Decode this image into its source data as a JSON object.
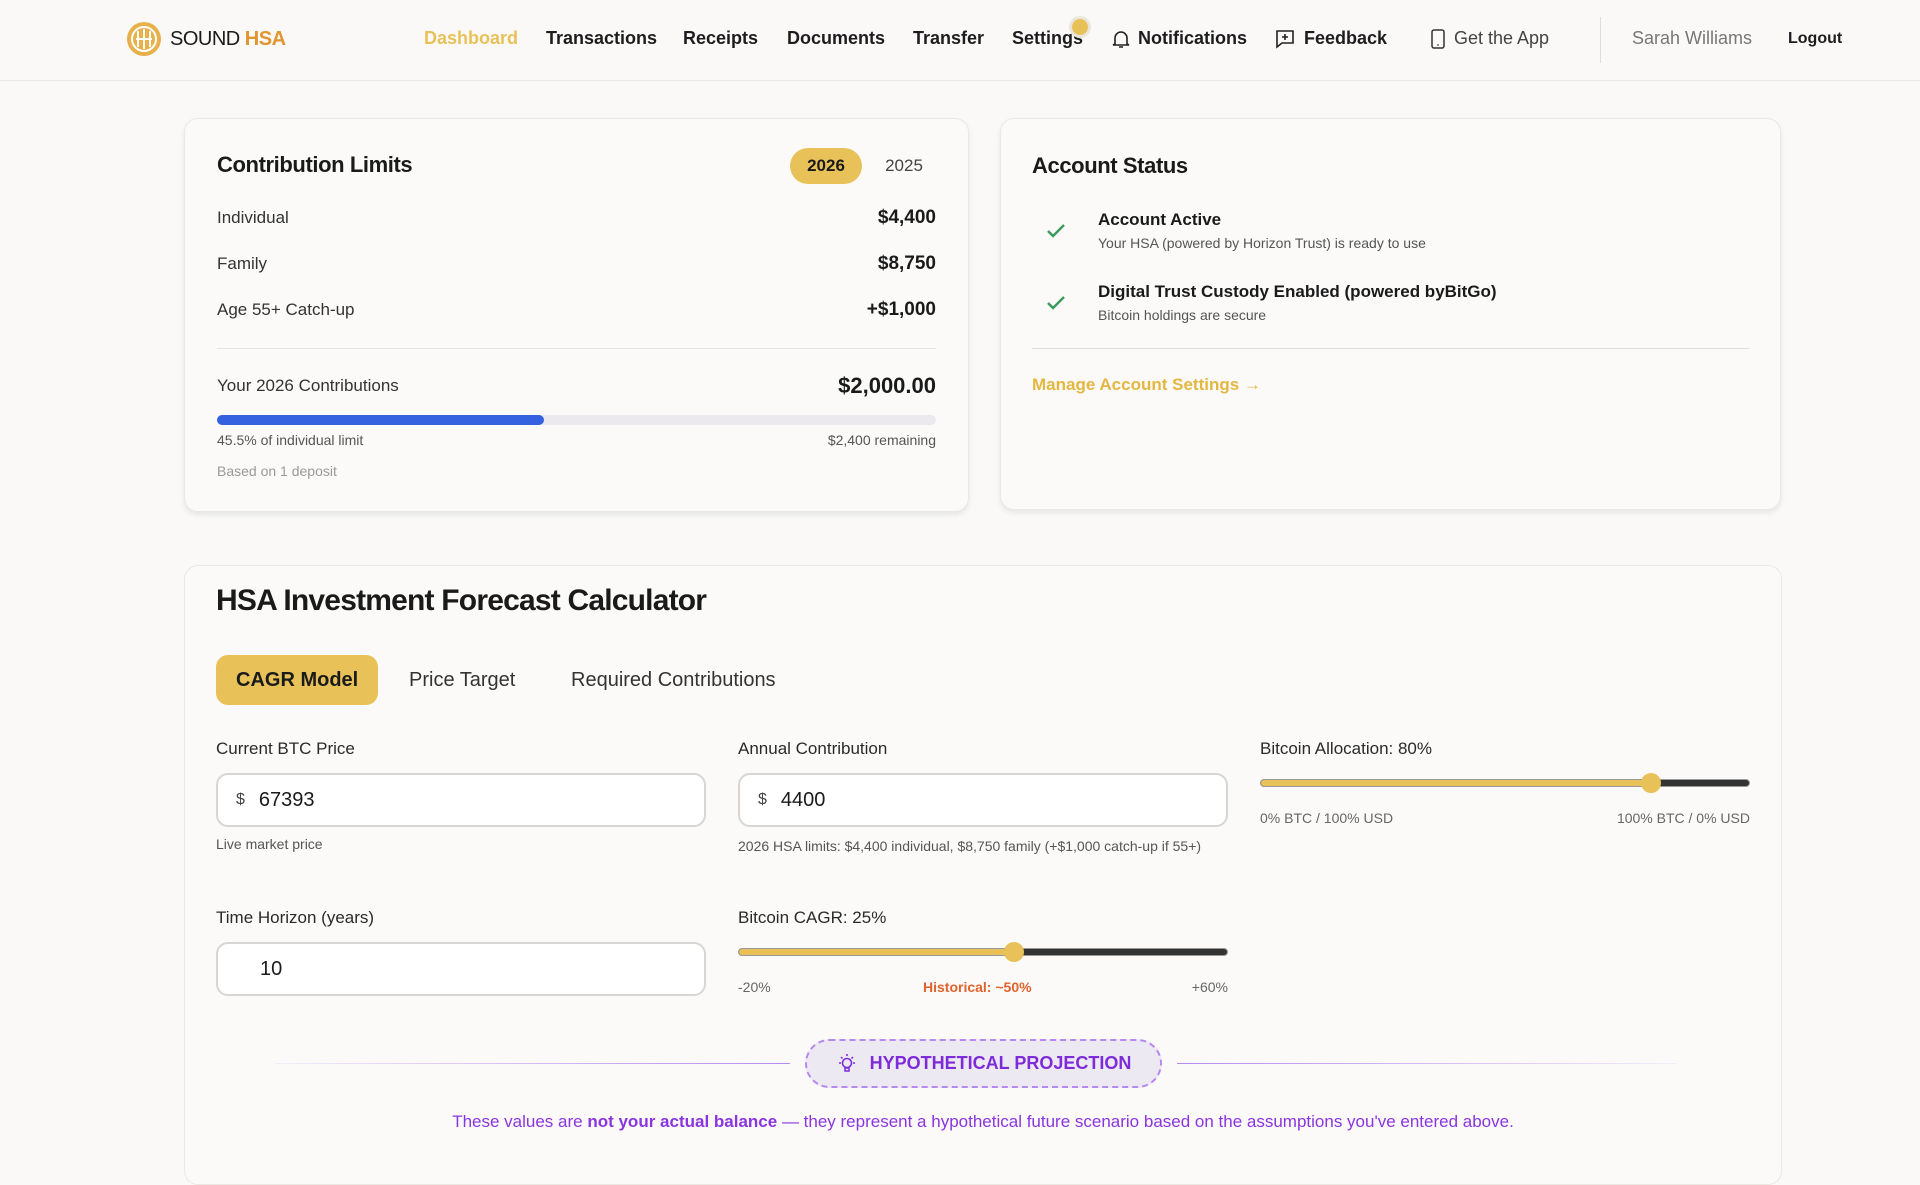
{
  "header": {
    "brand_a": "SOUND",
    "brand_b": "HSA",
    "nav": [
      "Dashboard",
      "Transactions",
      "Receipts",
      "Documents",
      "Transfer",
      "Settings"
    ],
    "notifications": "Notifications",
    "feedback": "Feedback",
    "get_app": "Get the App",
    "user": "Sarah Williams",
    "logout": "Logout",
    "active": "Dashboard"
  },
  "limits": {
    "title": "Contribution Limits",
    "years": [
      "2026",
      "2025"
    ],
    "selected_year": "2026",
    "rows": [
      {
        "label": "Individual",
        "value": "$4,400"
      },
      {
        "label": "Family",
        "value": "$8,750"
      },
      {
        "label": "Age 55+ Catch-up",
        "value": "+$1,000"
      }
    ],
    "contrib_label": "Your 2026 Contributions",
    "contrib_value": "$2,000.00",
    "progress_percent": 45.5,
    "progress_text": "45.5% of individual limit",
    "remaining": "$2,400 remaining",
    "deposits": "Based on 1 deposit"
  },
  "status": {
    "title": "Account Status",
    "items": [
      {
        "title": "Account Active",
        "sub": "Your HSA (powered by Horizon Trust) is ready to use"
      },
      {
        "title": "Digital Trust Custody Enabled (powered byBitGo)",
        "sub": "Bitcoin holdings are secure"
      }
    ],
    "link": "Manage Account Settings →"
  },
  "calc": {
    "title": "HSA Investment Forecast Calculator",
    "tabs": [
      "CAGR Model",
      "Price Target",
      "Required Contributions"
    ],
    "active_tab": "CAGR Model",
    "btc_price": {
      "label": "Current BTC Price",
      "currency": "$",
      "value": "67393",
      "hint": "Live market price"
    },
    "annual": {
      "label": "Annual Contribution",
      "currency": "$",
      "value": "4400",
      "hint": "2026 HSA limits: $4,400 individual, $8,750 family (+$1,000 catch-up if 55+)"
    },
    "allocation": {
      "label": "Bitcoin Allocation: 80%",
      "value": 80,
      "min_label": "0% BTC / 100% USD",
      "max_label": "100% BTC / 0% USD"
    },
    "horizon": {
      "label": "Time Horizon (years)",
      "value": "10"
    },
    "cagr": {
      "label": "Bitcoin CAGR: 25%",
      "value": 25,
      "min": -20,
      "max": 60,
      "min_label": "-20%",
      "mid_label": "Historical: ~50%",
      "max_label": "+60%"
    },
    "projection_badge": "HYPOTHETICAL PROJECTION",
    "disclaimer_a": "These values are ",
    "disclaimer_b": "not your actual balance",
    "disclaimer_c": " — they represent a hypothetical future scenario based on the assumptions you've entered above."
  },
  "colors": {
    "gold": "#e8c259",
    "blue": "#3461e0",
    "purple": "#7e2bd9",
    "green": "#3a9a5b",
    "link": "#e3b740"
  }
}
